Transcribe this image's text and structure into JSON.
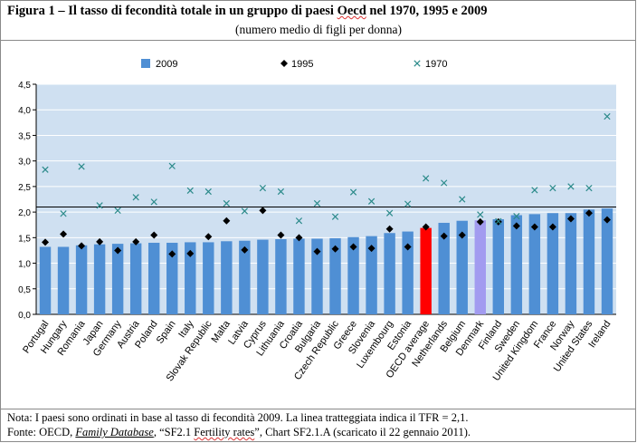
{
  "header": {
    "title_a": "Figura 1 – Il tasso di fecondità totale in un gruppo di paesi ",
    "title_b": "Oecd",
    "title_c": " nel 1970, 1995 e 2009",
    "subtitle": "(numero medio di figli per donna)"
  },
  "footer": {
    "note": "Nota: I paesi sono ordinati in base al tasso di fecondità  2009. La linea tratteggiata indica il TFR = 2,1.",
    "source_a": "Fonte: OECD, ",
    "source_b": "Family Database",
    "source_c": ", “SF2.1 ",
    "source_d": "Fertility rates",
    "source_e": "”, Chart SF2.1.A (scaricato il 22 gennaio 2011)."
  },
  "chart_data": {
    "type": "bar",
    "categories": [
      "Portugal",
      "Hungary",
      "Romania",
      "Japan",
      "Germany",
      "Austria",
      "Poland",
      "Spain",
      "Italy",
      "Slovak Republic",
      "Malta",
      "Latvia",
      "Cyprus",
      "Lithuania",
      "Croatia",
      "Bulgaria",
      "Czech Republic",
      "Greece",
      "Slovenia",
      "Luxembourg",
      "Estonia",
      "OECD average",
      "Netherlands",
      "Belgium",
      "Denmark",
      "Finland",
      "Sweden",
      "United Kingdom",
      "France",
      "Norway",
      "United States",
      "Ireland"
    ],
    "series": [
      {
        "name": "2009",
        "marker": "bar",
        "values": [
          1.32,
          1.32,
          1.35,
          1.37,
          1.38,
          1.39,
          1.4,
          1.4,
          1.41,
          1.41,
          1.43,
          1.44,
          1.46,
          1.47,
          1.48,
          1.48,
          1.49,
          1.51,
          1.53,
          1.59,
          1.62,
          1.69,
          1.79,
          1.83,
          1.84,
          1.86,
          1.94,
          1.96,
          1.98,
          1.98,
          2.05,
          2.07
        ]
      },
      {
        "name": "1995",
        "marker": "diamond",
        "values": [
          1.41,
          1.57,
          1.34,
          1.42,
          1.25,
          1.42,
          1.55,
          1.18,
          1.19,
          1.52,
          1.83,
          1.26,
          2.03,
          1.55,
          1.5,
          1.23,
          1.28,
          1.32,
          1.29,
          1.67,
          1.32,
          1.71,
          1.53,
          1.55,
          1.81,
          1.81,
          1.73,
          1.71,
          1.71,
          1.87,
          1.98,
          1.85
        ]
      },
      {
        "name": "1970",
        "marker": "x",
        "values": [
          2.83,
          1.97,
          2.89,
          2.13,
          2.03,
          2.29,
          2.2,
          2.9,
          2.42,
          2.4,
          2.17,
          2.02,
          2.47,
          2.4,
          1.83,
          2.17,
          1.91,
          2.39,
          2.21,
          1.98,
          2.16,
          2.66,
          2.57,
          2.25,
          1.95,
          1.82,
          1.92,
          2.43,
          2.47,
          2.5,
          2.47,
          3.87
        ]
      }
    ],
    "highlight": {
      "OECD average": "#ff0000",
      "Denmark": "#a29bf0"
    },
    "colors": {
      "bar": "#4f8fd4",
      "plot_bg": "#cfe0f1",
      "line_1995": "#000000",
      "marker_1970": "#2b8a8a"
    },
    "reference_line": 2.1,
    "yticks": [
      "0,0",
      "0,5",
      "1,0",
      "1,5",
      "2,0",
      "2,5",
      "3,0",
      "3,5",
      "4,0",
      "4,5"
    ],
    "ylim": [
      0,
      4.5
    ],
    "grid": "horizontal-white",
    "legend": "top-center"
  }
}
